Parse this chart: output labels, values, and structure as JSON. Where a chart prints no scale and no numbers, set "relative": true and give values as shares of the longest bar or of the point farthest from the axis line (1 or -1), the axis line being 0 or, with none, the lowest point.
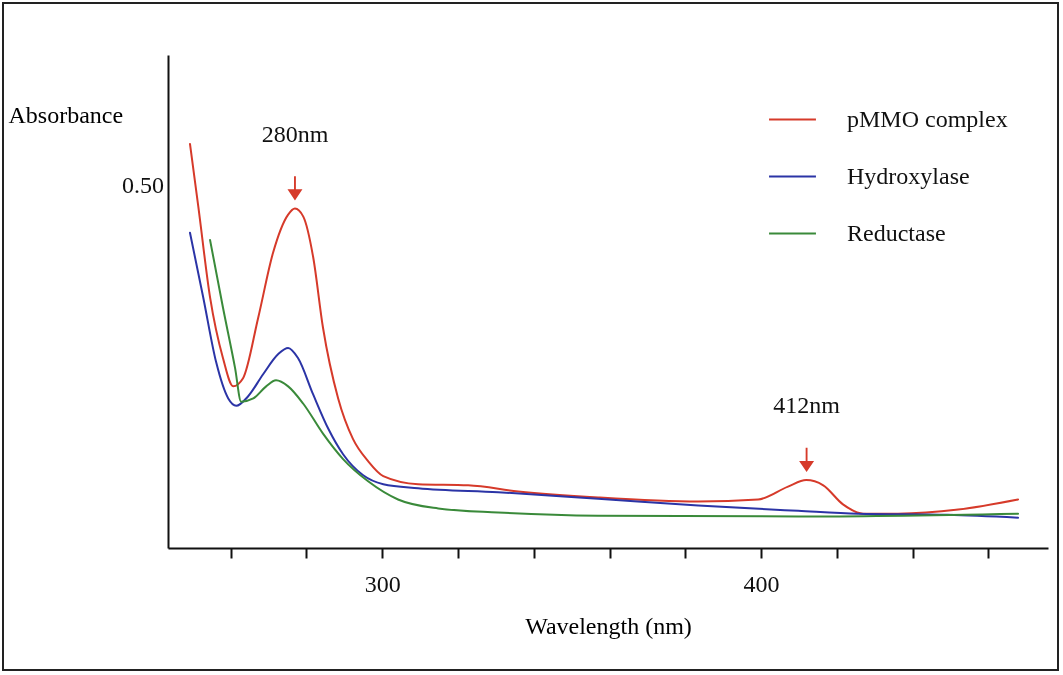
{
  "chart_data": {
    "type": "line",
    "relative": true,
    "xlabel": "Wavelength (nm)",
    "ylabel": "Absorbance",
    "xlim": [
      243.5,
      475.7
    ],
    "xticks": [
      {
        "value": 260,
        "label": null
      },
      {
        "value": 280,
        "label": null
      },
      300,
      {
        "value": 320,
        "label": null
      },
      {
        "value": 340,
        "label": null
      },
      {
        "value": 360,
        "label": null
      },
      {
        "value": 380,
        "label": null
      },
      400,
      {
        "value": 420,
        "label": null
      },
      {
        "value": 440,
        "label": null
      },
      {
        "value": 460,
        "label": null
      }
    ],
    "legend": "top right",
    "grid": false,
    "marker": "none",
    "line_style": "solid",
    "annotations": [
      "0.50",
      {
        "text": "280nm",
        "x": 277,
        "y": 0.84
      },
      {
        "text": "412nm",
        "x": 412,
        "y": 0.168
      }
    ],
    "series": [
      {
        "name": "pMMO complex",
        "color": "#d63a2a",
        "x": [
          249.3,
          251.5,
          254.6,
          258.0,
          260.7,
          263.3,
          267.3,
          271.2,
          275.2,
          277.0,
          279.2,
          281.8,
          284.4,
          288.4,
          292.3,
          296.3,
          300.3,
          309.5,
          322.7,
          335.9,
          357,
          383.4,
          399.2,
          407.1,
          411.9,
          416.4,
          421.6,
          426.9,
          436.1,
          452,
          467.8
        ],
        "values": [
          1.0,
          0.845,
          0.62,
          0.47,
          0.4,
          0.42,
          0.57,
          0.73,
          0.825,
          0.84,
          0.82,
          0.72,
          0.545,
          0.37,
          0.27,
          0.215,
          0.178,
          0.158,
          0.155,
          0.14,
          0.125,
          0.115,
          0.12,
          0.152,
          0.168,
          0.155,
          0.108,
          0.085,
          0.085,
          0.095,
          0.12
        ]
      },
      {
        "name": "Hydroxylase",
        "color": "#2b34a6",
        "x": [
          249.3,
          252.8,
          256.2,
          259.4,
          261.5,
          264.6,
          268.6,
          272.6,
          275.2,
          277.8,
          281.8,
          285.8,
          289.7,
          295,
          300.3,
          309.5,
          330.6,
          357,
          383.4,
          409.8,
          425.6,
          449.3,
          467.8
        ],
        "values": [
          0.78,
          0.62,
          0.46,
          0.37,
          0.352,
          0.375,
          0.43,
          0.48,
          0.495,
          0.47,
          0.38,
          0.295,
          0.232,
          0.18,
          0.158,
          0.148,
          0.138,
          0.122,
          0.105,
          0.092,
          0.085,
          0.082,
          0.075
        ]
      },
      {
        "name": "Reductase",
        "color": "#3a8a3a",
        "x": [
          254.6,
          258,
          261.2,
          262.8,
          266,
          269.4,
          272,
          275.2,
          279.2,
          284.4,
          289.7,
          296.3,
          304.2,
          314.8,
          330.6,
          357,
          409.8,
          467.8
        ],
        "values": [
          0.762,
          0.595,
          0.445,
          0.362,
          0.37,
          0.4,
          0.415,
          0.4,
          0.357,
          0.283,
          0.22,
          0.165,
          0.12,
          0.098,
          0.088,
          0.08,
          0.078,
          0.085
        ]
      }
    ]
  }
}
